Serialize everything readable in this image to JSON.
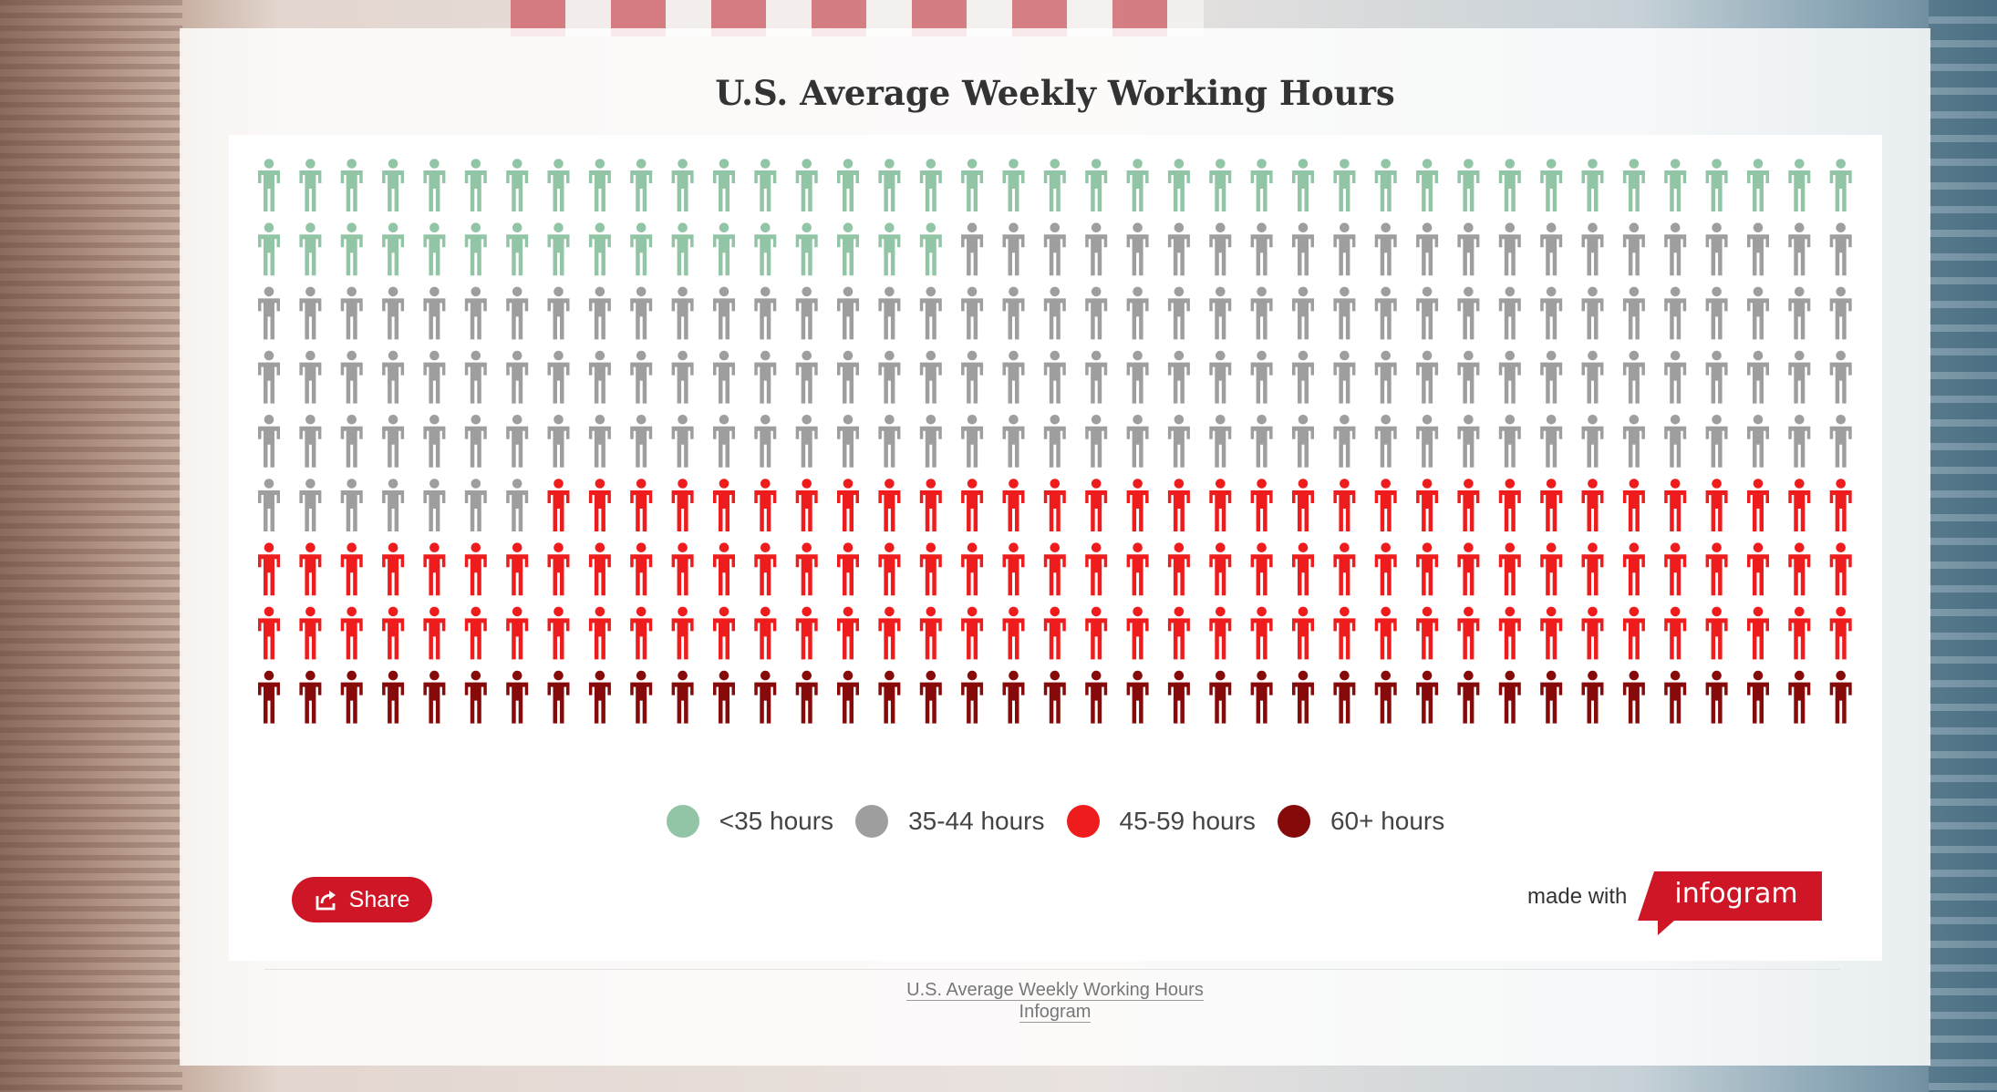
{
  "chart_data": {
    "type": "pictogram",
    "title": "U.S. Average Weekly Working Hours",
    "total_icons": 351,
    "categories": [
      "<35 hours",
      "35-44 hours",
      "45-59 hours",
      "60+ hours"
    ],
    "values": [
      56,
      146,
      110,
      39
    ],
    "colors": [
      "#92c5a6",
      "#9e9e9e",
      "#ee1c1c",
      "#860a0a"
    ],
    "legend_position": "bottom-center"
  },
  "share": {
    "label": "Share"
  },
  "branding": {
    "made_with": "made with",
    "logo_text": "infogram"
  },
  "footer": {
    "title_link": "U.S. Average Weekly Working Hours",
    "source_link": "Infogram"
  }
}
